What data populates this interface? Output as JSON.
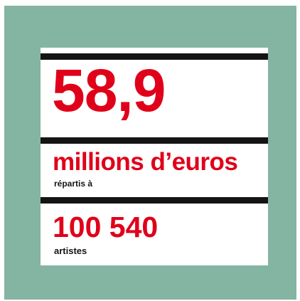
{
  "colors": {
    "background": "#84b4a2",
    "card": "#ffffff",
    "accent": "#e0001a",
    "rule": "#141414",
    "text": "#141414"
  },
  "headline": {
    "amount": "58,9",
    "unit": "millions d’euros",
    "connector": "répartis à"
  },
  "recipients": {
    "count": "100 540",
    "label": "artistes"
  }
}
